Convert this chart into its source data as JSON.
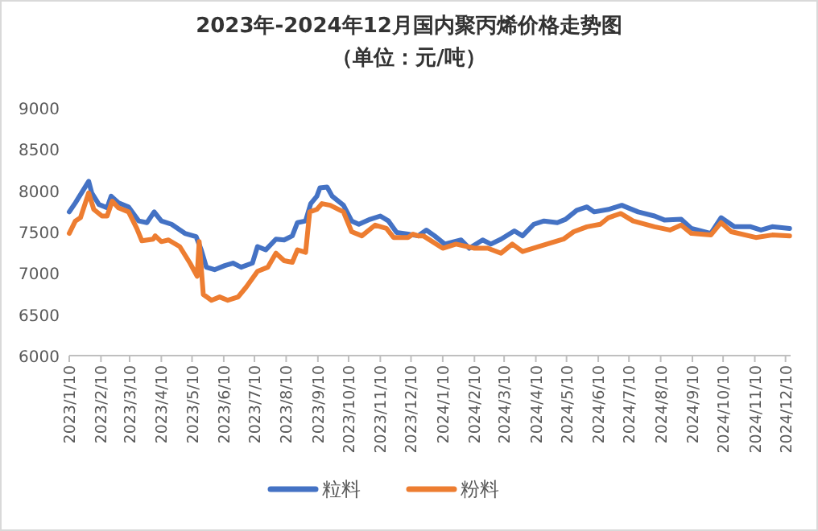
{
  "chart_data": {
    "type": "line",
    "title": "2023年-2024年12月国内聚丙烯价格走势图",
    "subtitle": "（单位：元/吨）",
    "xlim": [
      "2023-01-10",
      "2024-12-15"
    ],
    "ylim": [
      6000,
      9000
    ],
    "yticks": [
      6000,
      6500,
      7000,
      7500,
      8000,
      8500,
      9000
    ],
    "xticks": [
      {
        "value": "2023-01-10",
        "label": "2023/1/10"
      },
      {
        "value": "2023-02-10",
        "label": "2023/2/10"
      },
      {
        "value": "2023-03-10",
        "label": "2023/3/10"
      },
      {
        "value": "2023-04-10",
        "label": "2023/4/10"
      },
      {
        "value": "2023-05-10",
        "label": "2023/5/10"
      },
      {
        "value": "2023-06-10",
        "label": "2023/6/10"
      },
      {
        "value": "2023-07-10",
        "label": "2023/7/10"
      },
      {
        "value": "2023-08-10",
        "label": "2023/8/10"
      },
      {
        "value": "2023-09-10",
        "label": "2023/9/10"
      },
      {
        "value": "2023-10-10",
        "label": "2023/10/10"
      },
      {
        "value": "2023-11-10",
        "label": "2023/11/10"
      },
      {
        "value": "2023-12-10",
        "label": "2023/12/10"
      },
      {
        "value": "2024-01-10",
        "label": "2024/1/10"
      },
      {
        "value": "2024-02-10",
        "label": "2024/2/10"
      },
      {
        "value": "2024-03-10",
        "label": "2024/3/10"
      },
      {
        "value": "2024-04-10",
        "label": "2024/4/10"
      },
      {
        "value": "2024-05-10",
        "label": "2024/5/10"
      },
      {
        "value": "2024-06-10",
        "label": "2024/6/10"
      },
      {
        "value": "2024-07-10",
        "label": "2024/7/10"
      },
      {
        "value": "2024-08-10",
        "label": "2024/8/10"
      },
      {
        "value": "2024-09-10",
        "label": "2024/9/10"
      },
      {
        "value": "2024-10-10",
        "label": "2024/10/10"
      },
      {
        "value": "2024-11-10",
        "label": "2024/11/10"
      },
      {
        "value": "2024-12-10",
        "label": "2024/12/10"
      }
    ],
    "legend": "bottom",
    "series": [
      {
        "name": "粒料",
        "color": "#4472c4",
        "x": [
          "2023-01-10",
          "2023-01-16",
          "2023-01-29",
          "2023-02-01",
          "2023-02-08",
          "2023-02-16",
          "2023-02-20",
          "2023-02-27",
          "2023-03-09",
          "2023-03-19",
          "2023-03-27",
          "2023-04-03",
          "2023-04-10",
          "2023-04-20",
          "2023-05-03",
          "2023-05-14",
          "2023-05-19",
          "2023-05-24",
          "2023-06-01",
          "2023-06-11",
          "2023-06-19",
          "2023-06-27",
          "2023-07-08",
          "2023-07-13",
          "2023-07-21",
          "2023-07-31",
          "2023-08-08",
          "2023-08-16",
          "2023-08-21",
          "2023-08-29",
          "2023-09-03",
          "2023-09-09",
          "2023-09-12",
          "2023-09-19",
          "2023-09-24",
          "2023-10-05",
          "2023-10-13",
          "2023-10-20",
          "2023-10-31",
          "2023-11-10",
          "2023-11-18",
          "2023-11-26",
          "2023-12-07",
          "2023-12-17",
          "2023-12-25",
          "2024-01-02",
          "2024-01-12",
          "2024-01-28",
          "2024-02-05",
          "2024-02-18",
          "2024-02-26",
          "2024-03-07",
          "2024-03-20",
          "2024-03-28",
          "2024-04-08",
          "2024-04-18",
          "2024-05-01",
          "2024-05-09",
          "2024-05-20",
          "2024-05-30",
          "2024-06-06",
          "2024-06-20",
          "2024-07-03",
          "2024-07-19",
          "2024-08-04",
          "2024-08-14",
          "2024-08-30",
          "2024-09-09",
          "2024-09-28",
          "2024-10-08",
          "2024-10-21",
          "2024-11-06",
          "2024-11-16",
          "2024-11-27",
          "2024-12-14"
        ],
        "values": [
          7740,
          7850,
          8110,
          7970,
          7830,
          7790,
          7930,
          7850,
          7800,
          7630,
          7610,
          7740,
          7630,
          7590,
          7480,
          7440,
          7280,
          7070,
          7040,
          7090,
          7120,
          7070,
          7120,
          7320,
          7280,
          7410,
          7400,
          7450,
          7610,
          7630,
          7840,
          7930,
          8030,
          8040,
          7930,
          7820,
          7630,
          7590,
          7650,
          7690,
          7630,
          7490,
          7470,
          7450,
          7520,
          7450,
          7350,
          7400,
          7300,
          7400,
          7350,
          7410,
          7510,
          7450,
          7590,
          7630,
          7610,
          7650,
          7760,
          7800,
          7740,
          7770,
          7820,
          7740,
          7690,
          7640,
          7650,
          7540,
          7480,
          7670,
          7560,
          7560,
          7520,
          7560,
          7540
        ]
      },
      {
        "name": "粉料",
        "color": "#ed7d31",
        "x": [
          "2023-01-10",
          "2023-01-16",
          "2023-01-21",
          "2023-01-29",
          "2023-02-03",
          "2023-02-11",
          "2023-02-16",
          "2023-02-21",
          "2023-02-27",
          "2023-03-09",
          "2023-03-17",
          "2023-03-22",
          "2023-04-02",
          "2023-04-04",
          "2023-04-10",
          "2023-04-17",
          "2023-04-28",
          "2023-05-08",
          "2023-05-15",
          "2023-05-17",
          "2023-05-21",
          "2023-05-29",
          "2023-06-06",
          "2023-06-14",
          "2023-06-24",
          "2023-07-02",
          "2023-07-13",
          "2023-07-23",
          "2023-07-31",
          "2023-08-08",
          "2023-08-16",
          "2023-08-21",
          "2023-08-29",
          "2023-09-02",
          "2023-09-09",
          "2023-09-14",
          "2023-09-22",
          "2023-10-05",
          "2023-10-13",
          "2023-10-23",
          "2023-11-05",
          "2023-11-16",
          "2023-11-23",
          "2023-12-07",
          "2023-12-12",
          "2023-12-17",
          "2023-12-22",
          "2024-01-10",
          "2024-01-23",
          "2024-02-10",
          "2024-02-23",
          "2024-03-07",
          "2024-03-18",
          "2024-03-28",
          "2024-04-13",
          "2024-04-26",
          "2024-05-07",
          "2024-05-17",
          "2024-05-30",
          "2024-06-12",
          "2024-06-20",
          "2024-07-02",
          "2024-07-14",
          "2024-08-04",
          "2024-08-19",
          "2024-08-30",
          "2024-09-09",
          "2024-09-28",
          "2024-10-08",
          "2024-10-18",
          "2024-11-11",
          "2024-11-27",
          "2024-12-14"
        ],
        "values": [
          7480,
          7630,
          7670,
          7970,
          7770,
          7690,
          7690,
          7870,
          7790,
          7740,
          7540,
          7390,
          7410,
          7450,
          7380,
          7400,
          7320,
          7120,
          6960,
          7380,
          6740,
          6670,
          6710,
          6670,
          6710,
          6830,
          7020,
          7070,
          7240,
          7150,
          7130,
          7280,
          7250,
          7740,
          7770,
          7840,
          7820,
          7740,
          7500,
          7450,
          7580,
          7540,
          7430,
          7430,
          7470,
          7450,
          7450,
          7300,
          7350,
          7300,
          7300,
          7240,
          7350,
          7260,
          7320,
          7370,
          7410,
          7500,
          7560,
          7590,
          7670,
          7720,
          7630,
          7560,
          7520,
          7580,
          7480,
          7460,
          7610,
          7500,
          7430,
          7460,
          7450
        ]
      }
    ]
  }
}
